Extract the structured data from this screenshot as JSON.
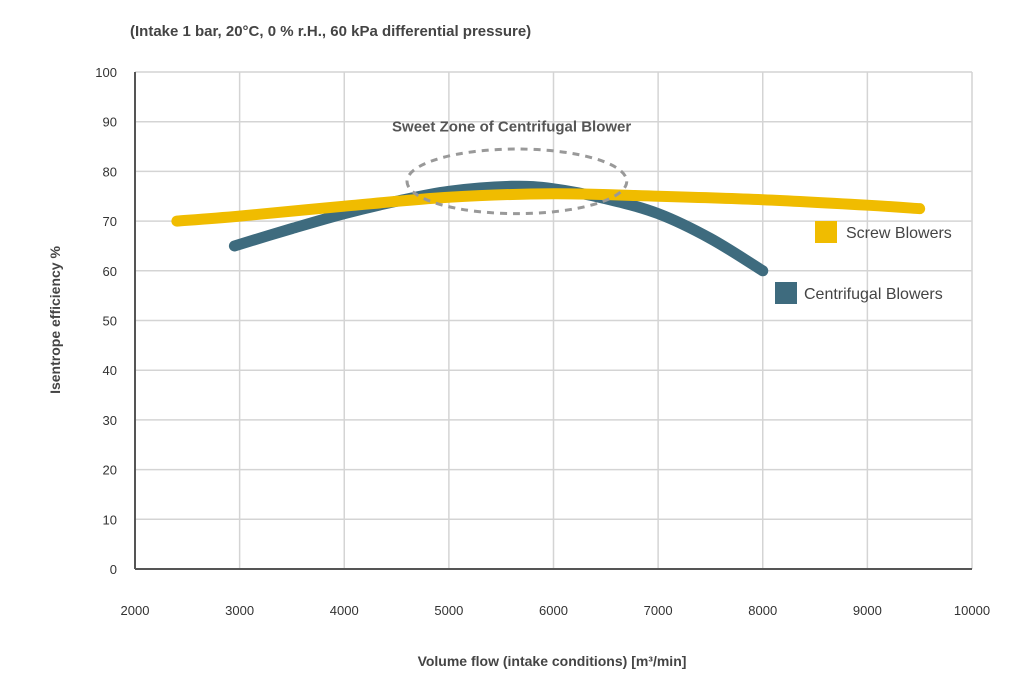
{
  "chart_data": {
    "type": "line",
    "title": "(Intake 1 bar, 20°C, 0 % r.H., 60 kPa differential pressure)",
    "xlabel": "Volume flow (intake conditions) [m³/min]",
    "ylabel": "Isentrope efficiency %",
    "xlim": [
      2000,
      10000
    ],
    "ylim": [
      0,
      100
    ],
    "xticks": [
      2000,
      3000,
      4000,
      5000,
      6000,
      7000,
      8000,
      9000,
      10000
    ],
    "yticks": [
      0,
      10,
      20,
      30,
      40,
      50,
      60,
      70,
      80,
      90,
      100
    ],
    "grid": true,
    "legend_placement": "right",
    "series": [
      {
        "name": "Screw Blowers",
        "color": "#f0bc00",
        "x": [
          2400,
          3000,
          4000,
          5000,
          6000,
          7000,
          8000,
          9000,
          9500
        ],
        "y": [
          70,
          71,
          73,
          74.8,
          75.5,
          75,
          74.3,
          73.2,
          72.5
        ]
      },
      {
        "name": "Centrifugal Blowers",
        "color": "#3e6b7e",
        "x": [
          2950,
          3500,
          4000,
          4500,
          5000,
          5600,
          6000,
          6500,
          7000,
          7500,
          8000
        ],
        "y": [
          65,
          68.5,
          71.5,
          74,
          76,
          77,
          76.5,
          74.5,
          71.5,
          66.5,
          60
        ]
      }
    ],
    "annotations": [
      {
        "text": "Sweet Zone of Centrifugal Blower",
        "x": 5600,
        "y": 89,
        "ellipse": {
          "cx": 5650,
          "cy": 78,
          "rx": 1050,
          "ry": 6.5
        }
      }
    ]
  }
}
